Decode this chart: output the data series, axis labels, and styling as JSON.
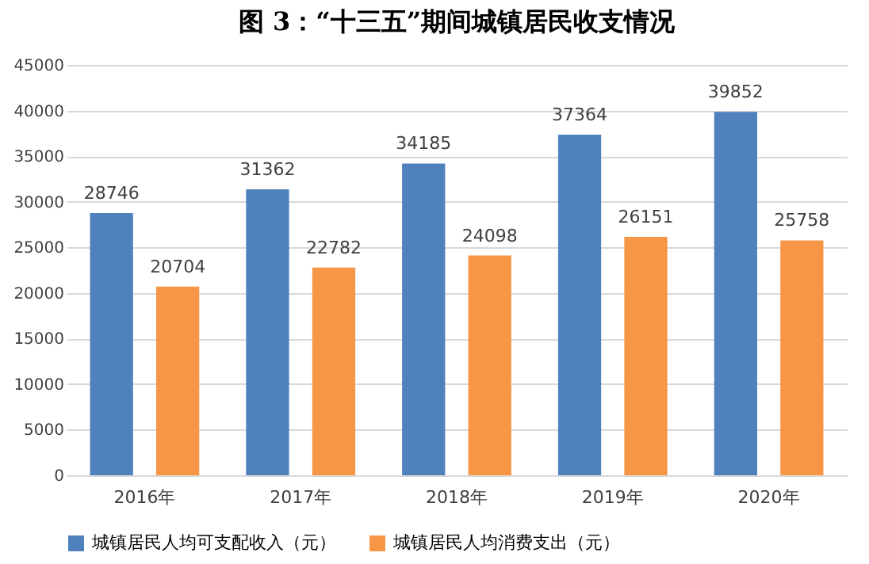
{
  "chart_data": {
    "type": "bar",
    "title": "图 3：“十三五”期间城镇居民收支情况",
    "categories": [
      "2016年",
      "2017年",
      "2018年",
      "2019年",
      "2020年"
    ],
    "series": [
      {
        "name": "城镇居民人均可支配收入（元）",
        "color": "#4f81bd",
        "values": [
          28746,
          31362,
          34185,
          37364,
          39852
        ]
      },
      {
        "name": "城镇居民人均消费支出（元）",
        "color": "#f79646",
        "values": [
          20704,
          22782,
          24098,
          26151,
          25758
        ]
      }
    ],
    "ylim": [
      0,
      45000
    ],
    "yticks": [
      0,
      5000,
      10000,
      15000,
      20000,
      25000,
      30000,
      35000,
      40000,
      45000
    ],
    "grid": "y",
    "legend": "bottom",
    "data_labels": true
  }
}
